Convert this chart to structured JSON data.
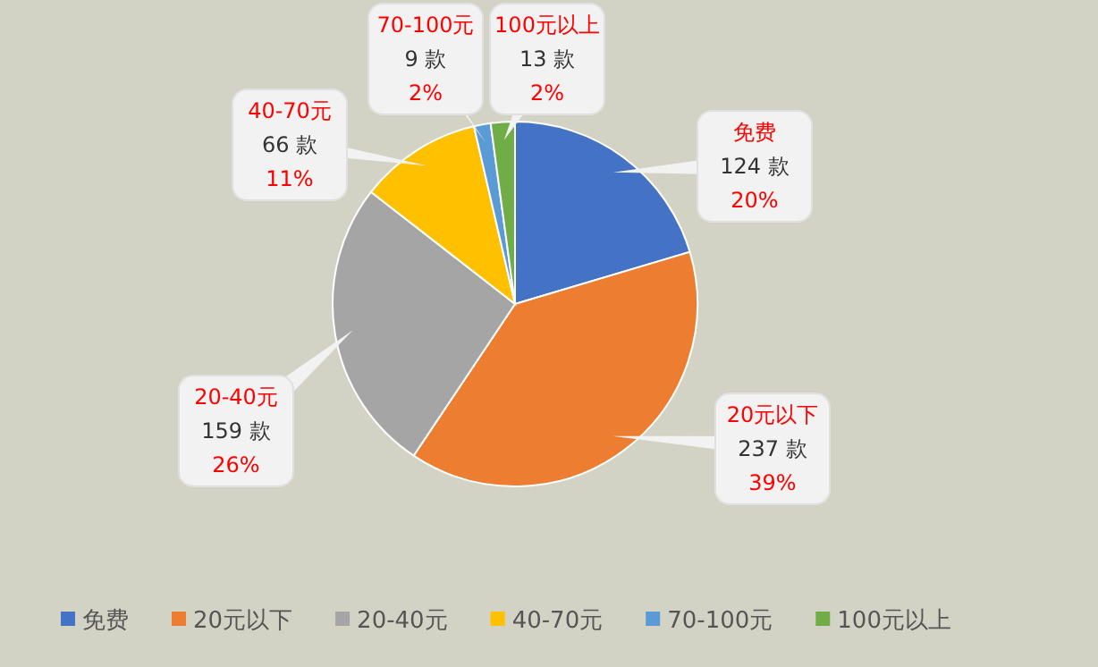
{
  "chart_data": {
    "type": "pie",
    "categories": [
      "免费",
      "20元以下",
      "20-40元",
      "40-70元",
      "70-100元",
      "100元以上"
    ],
    "values": [
      124,
      237,
      159,
      66,
      9,
      13
    ],
    "colors": [
      "#4472c4",
      "#ed7d31",
      "#a5a5a5",
      "#ffc000",
      "#5b9bd5",
      "#70ad47"
    ],
    "value_labels": [
      "124 款\n20%",
      "237 款\n39%",
      "159 款\n26%",
      "66 款\n11%",
      "9 款\n2%",
      "13 款\n2%"
    ],
    "legend": "bottom"
  }
}
